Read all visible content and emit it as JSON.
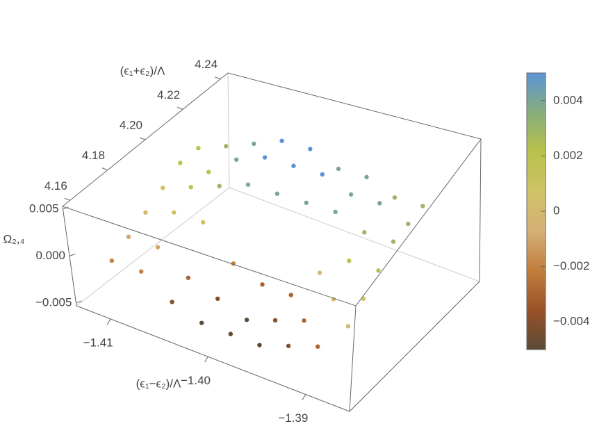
{
  "chart_data": {
    "type": "scatter3d",
    "xlabel": "(ϵ₁−ϵ₂)/Λ",
    "ylabel": "(ϵ₁+ϵ₂)/Λ",
    "zlabel": "Ω₂,₄",
    "xlim": [
      -1.4135,
      -1.3855
    ],
    "ylim": [
      4.156,
      4.244
    ],
    "zlim": [
      -0.0053,
      0.0053
    ],
    "xticks": [
      {
        "value": -1.41,
        "label": "−1.41"
      },
      {
        "value": -1.4,
        "label": "−1.40"
      },
      {
        "value": -1.39,
        "label": "−1.39"
      }
    ],
    "yticks": [
      4.16,
      4.18,
      {
        "value": 4.2,
        "label": "4.20"
      },
      4.22,
      4.24
    ],
    "zticks": [
      0.005,
      {
        "value": 0,
        "label": "0.000"
      },
      {
        "value": -0.005,
        "label": "−0.005"
      }
    ],
    "colorbar": {
      "lim": [
        -0.005,
        0.005
      ],
      "ticks": [
        0.004,
        0.002,
        0,
        {
          "value": -0.002,
          "label": "−0.002"
        },
        {
          "value": -0.004,
          "label": "−0.004"
        }
      ],
      "colors": [
        "#5a4a36",
        "#9a5128",
        "#c27d3c",
        "#d4b075",
        "#cfc267",
        "#b9c24a",
        "#88ad7c",
        "#5c93d6"
      ]
    },
    "x": [
      -1.412,
      -1.412,
      -1.412,
      -1.412,
      -1.412,
      -1.412,
      -1.409,
      -1.409,
      -1.409,
      -1.409,
      -1.409,
      -1.409,
      -1.406,
      -1.406,
      -1.406,
      -1.406,
      -1.406,
      -1.406,
      -1.403,
      -1.403,
      -1.403,
      -1.403,
      -1.403,
      -1.403,
      -1.4,
      -1.4,
      -1.4,
      -1.4,
      -1.4,
      -1.4,
      -1.397,
      -1.397,
      -1.397,
      -1.397,
      -1.397,
      -1.397,
      -1.394,
      -1.394,
      -1.394,
      -1.394,
      -1.394,
      -1.394,
      -1.391,
      -1.391,
      -1.391,
      -1.391,
      -1.391,
      -1.391,
      -1.388,
      -1.388,
      -1.388,
      -1.388,
      -1.388,
      -1.388
    ],
    "y": [
      4.17,
      4.18,
      4.19,
      4.2,
      4.21,
      4.22,
      4.17,
      4.18,
      4.19,
      4.2,
      4.21,
      4.22,
      4.17,
      4.18,
      4.19,
      4.2,
      4.21,
      4.22,
      4.17,
      4.18,
      4.19,
      4.2,
      4.21,
      4.22,
      4.17,
      4.18,
      4.19,
      4.2,
      4.21,
      4.22,
      4.17,
      4.18,
      4.19,
      4.2,
      4.21,
      4.22,
      4.17,
      4.18,
      4.19,
      4.2,
      4.21,
      4.22,
      4.17,
      4.18,
      4.19,
      4.2,
      4.21,
      4.22,
      4.17,
      4.18,
      4.19,
      4.2,
      4.21,
      4.22
    ],
    "z": [
      -0.002,
      -0.001,
      0,
      0.001,
      0.002,
      0.002,
      -0.002,
      -0.001,
      0.001,
      0.002,
      0.002,
      0.003,
      -0.004,
      -0.003,
      0.001,
      0.003,
      0.004,
      0.004,
      -0.005,
      -0.004,
      -0.002,
      0.004,
      0.005,
      0.005,
      -0.005,
      -0.005,
      -0.003,
      0.004,
      0.005,
      0.005,
      -0.005,
      -0.004,
      -0.003,
      0.004,
      0.005,
      0.004,
      -0.004,
      -0.003,
      0,
      0.004,
      0.004,
      0.004,
      -0.003,
      0,
      0.002,
      0.003,
      0.004,
      0.003,
      0,
      0.001,
      0.002,
      0.003,
      0.003,
      0.003
    ]
  }
}
